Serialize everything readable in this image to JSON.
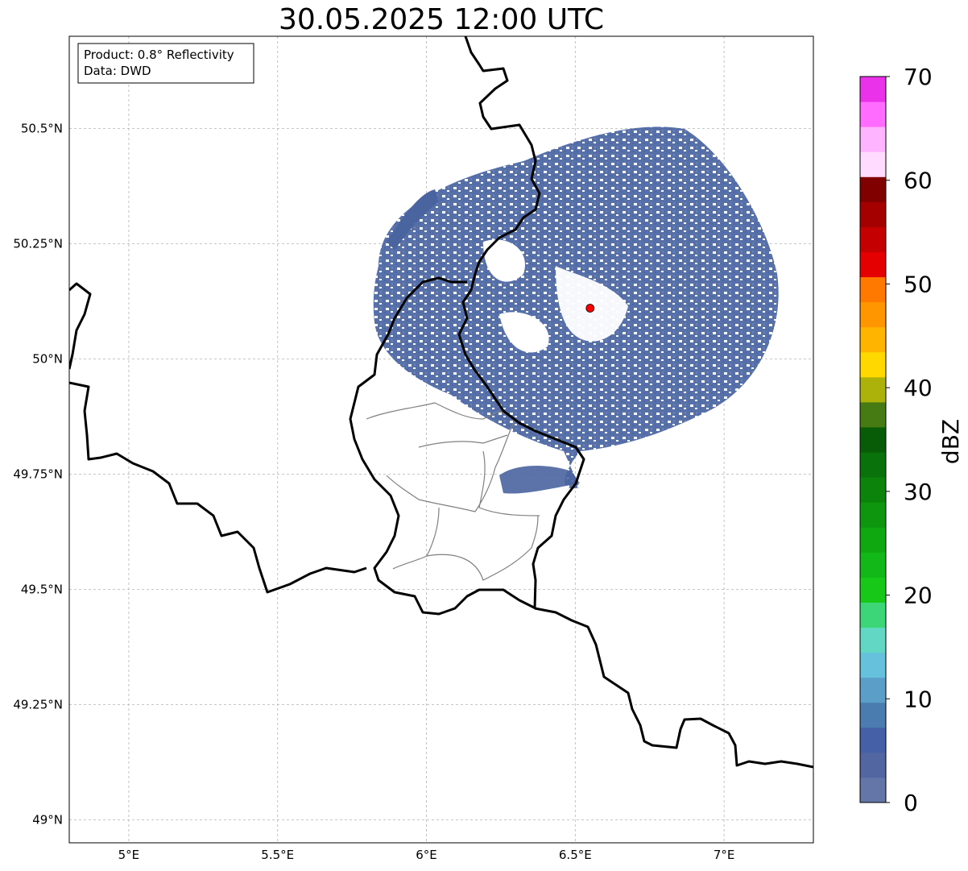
{
  "title": "30.05.2025 12:00 UTC",
  "info_box": {
    "line1": "Product: 0.8° Reflectivity",
    "line2": "Data: DWD"
  },
  "axes": {
    "lon_ticks": [
      {
        "value": 5.0,
        "label": "5°E"
      },
      {
        "value": 5.5,
        "label": "5.5°E"
      },
      {
        "value": 6.0,
        "label": "6°E"
      },
      {
        "value": 6.5,
        "label": "6.5°E"
      },
      {
        "value": 7.0,
        "label": "7°E"
      }
    ],
    "lat_ticks": [
      {
        "value": 50.5,
        "label": "50.5°N"
      },
      {
        "value": 50.25,
        "label": "50.25°N"
      },
      {
        "value": 50.0,
        "label": "50°N"
      },
      {
        "value": 49.75,
        "label": "49.75°N"
      },
      {
        "value": 49.5,
        "label": "49.5°N"
      },
      {
        "value": 49.25,
        "label": "49.25°N"
      },
      {
        "value": 49.0,
        "label": "49°N"
      }
    ],
    "lon_range": [
      4.8,
      7.3
    ],
    "lat_range": [
      48.95,
      50.7
    ],
    "grid": true
  },
  "radar_site": {
    "lon": 6.55,
    "lat": 50.11,
    "color": "#ff0000"
  },
  "colorbar": {
    "label": "dBZ",
    "min": 0,
    "max": 70,
    "tick_labels": [
      {
        "value": 0,
        "label": "0"
      },
      {
        "value": 10,
        "label": "10"
      },
      {
        "value": 20,
        "label": "20"
      },
      {
        "value": 30,
        "label": "30"
      },
      {
        "value": 40,
        "label": "40"
      },
      {
        "value": 50,
        "label": "50"
      },
      {
        "value": 60,
        "label": "60"
      },
      {
        "value": 70,
        "label": "70"
      }
    ],
    "colors": [
      "#6475a8",
      "#5266a2",
      "#4560a6",
      "#4a7cb0",
      "#5b9ec8",
      "#66c2dc",
      "#62d8c4",
      "#3cd678",
      "#18c818",
      "#12b818",
      "#10a810",
      "#0e960e",
      "#0c840c",
      "#0a720a",
      "#085c08",
      "#467a12",
      "#acb20a",
      "#ffd800",
      "#ffb400",
      "#ff9600",
      "#ff7800",
      "#e40000",
      "#c40000",
      "#a40000",
      "#800000",
      "#ffdcff",
      "#ffb4ff",
      "#ff6cff",
      "#ea32ea"
    ]
  },
  "colors": {
    "radar_echo": "#4a64a0",
    "border": "#000000",
    "admin_border": "#808080",
    "grid": "#b4b4b4"
  }
}
